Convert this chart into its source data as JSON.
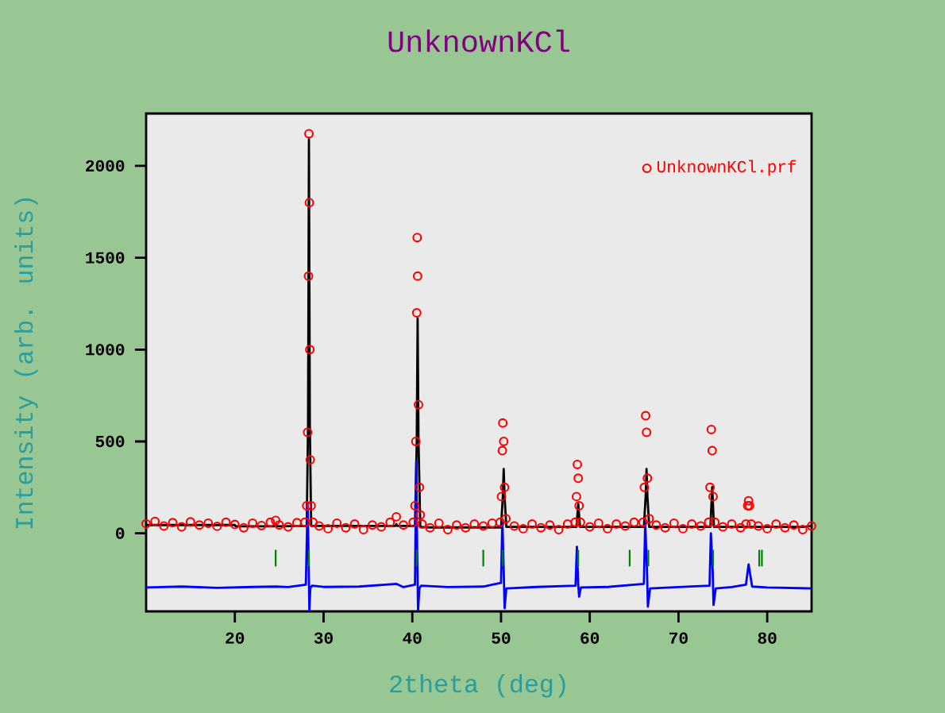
{
  "chart_data": {
    "type": "scatter",
    "title": "UnknownKCl",
    "xlabel": "2theta (deg)",
    "ylabel": "Intensity (arb. units)",
    "xlim": [
      10,
      85
    ],
    "ylim": [
      -425,
      2285
    ],
    "xticks": [
      20,
      30,
      40,
      50,
      60,
      70,
      80
    ],
    "yticks": [
      0,
      500,
      1000,
      1500,
      2000
    ],
    "grid": false,
    "legend": "top right",
    "series": [
      {
        "name": "UnknownKCl.prf",
        "marker": "circle",
        "color": "#ff0000",
        "x": [
          10,
          11,
          12,
          13,
          14,
          15,
          16,
          17,
          18,
          19,
          20,
          21,
          22,
          23,
          24,
          24.6,
          25,
          26,
          27,
          27.9,
          28.1,
          28.2,
          28.3,
          28.35,
          28.4,
          28.45,
          28.5,
          28.6,
          28.8,
          29.5,
          30.5,
          31.5,
          32.5,
          33.5,
          34.5,
          35.5,
          36.5,
          37.5,
          38.2,
          39,
          40.1,
          40.3,
          40.4,
          40.5,
          40.55,
          40.6,
          40.7,
          40.8,
          40.9,
          41.1,
          42,
          43,
          44,
          45,
          46,
          47,
          48,
          49,
          49.9,
          50.05,
          50.15,
          50.2,
          50.3,
          50.4,
          50.55,
          51.5,
          52.5,
          53.5,
          54.5,
          55.5,
          56.5,
          57.5,
          58.35,
          58.5,
          58.6,
          58.7,
          58.8,
          58.95,
          60,
          61,
          62,
          63,
          64,
          65,
          66,
          66.15,
          66.3,
          66.4,
          66.5,
          66.7,
          67.5,
          68.5,
          69.5,
          70.5,
          71.5,
          72.5,
          73.4,
          73.55,
          73.7,
          73.8,
          73.9,
          74.1,
          75,
          76,
          77,
          77.6,
          77.8,
          77.9,
          78,
          78.2,
          79,
          80,
          81,
          82,
          83,
          84,
          85
        ],
        "values": [
          52,
          65,
          40,
          58,
          35,
          62,
          45,
          55,
          38,
          60,
          48,
          30,
          55,
          42,
          60,
          70,
          45,
          35,
          58,
          60,
          150,
          550,
          1400,
          2175,
          1800,
          1000,
          400,
          150,
          60,
          40,
          25,
          55,
          30,
          50,
          20,
          45,
          35,
          60,
          90,
          45,
          60,
          150,
          500,
          1200,
          1610,
          1400,
          700,
          250,
          100,
          50,
          30,
          55,
          20,
          45,
          30,
          50,
          40,
          55,
          60,
          200,
          450,
          600,
          500,
          250,
          80,
          40,
          25,
          50,
          30,
          45,
          20,
          50,
          60,
          200,
          375,
          300,
          150,
          60,
          35,
          55,
          25,
          50,
          40,
          60,
          60,
          250,
          640,
          550,
          300,
          80,
          45,
          30,
          55,
          25,
          50,
          40,
          60,
          250,
          565,
          450,
          200,
          60,
          35,
          50,
          30,
          50,
          150,
          177,
          150,
          50,
          40,
          25,
          50,
          30,
          45,
          20,
          40
        ]
      },
      {
        "type": "line",
        "marker": "none",
        "color": "#000000",
        "x": [
          10,
          20,
          20.1,
          24.4,
          24.6,
          24.8,
          28.1,
          28.25,
          28.35,
          28.45,
          28.6,
          38.1,
          38.2,
          38.3,
          40.3,
          40.5,
          40.6,
          40.7,
          40.9,
          42,
          50,
          50.2,
          50.3,
          50.4,
          50.6,
          58.5,
          58.7,
          58.9,
          66.1,
          66.3,
          66.4,
          66.5,
          66.7,
          73.6,
          73.8,
          74,
          84,
          85
        ],
        "values": [
          45,
          45,
          38,
          38,
          50,
          38,
          40,
          600,
          2145,
          600,
          40,
          40,
          50,
          40,
          40,
          500,
          1170,
          500,
          35,
          32,
          32,
          200,
          350,
          200,
          35,
          35,
          160,
          35,
          35,
          200,
          350,
          200,
          35,
          35,
          252,
          35,
          35,
          40
        ]
      },
      {
        "type": "line",
        "marker": "none",
        "color": "#0000ff",
        "x": [
          10,
          14,
          18,
          22,
          24.6,
          26,
          28.0,
          28.2,
          28.3,
          28.4,
          28.5,
          28.7,
          30,
          34,
          38.2,
          39,
          40.3,
          40.45,
          40.55,
          40.65,
          40.8,
          41,
          44,
          48,
          49,
          50.0,
          50.15,
          50.3,
          50.4,
          50.6,
          54,
          58.4,
          58.55,
          58.7,
          58.8,
          59,
          62,
          65,
          66.1,
          66.25,
          66.45,
          66.55,
          66.8,
          70,
          73.5,
          73.65,
          73.85,
          73.95,
          74.2,
          76,
          77.6,
          77.9,
          78.3,
          80,
          85
        ],
        "values": [
          -295,
          -290,
          -297,
          -292,
          -290,
          -293,
          -280,
          164,
          -100,
          -420,
          -300,
          -285,
          -292,
          -290,
          -275,
          -293,
          -280,
          390,
          -100,
          -420,
          -300,
          -285,
          -293,
          -290,
          -280,
          -270,
          73,
          -200,
          -408,
          -300,
          -292,
          -285,
          -73,
          -280,
          -345,
          -295,
          -292,
          -280,
          -275,
          60,
          -200,
          -399,
          -300,
          -293,
          -285,
          0,
          -200,
          -390,
          -300,
          -293,
          -280,
          -170,
          -290,
          -295,
          -300
        ]
      },
      {
        "type": "bar",
        "color": "#008000",
        "x": [
          24.6,
          28.35,
          40.5,
          48.0,
          50.2,
          58.7,
          64.5,
          66.6,
          73.9,
          79.1,
          79.4
        ],
        "base": [
          -180,
          -180,
          -180,
          -180,
          -180,
          -180,
          -180,
          -180,
          -180,
          -180,
          -180
        ],
        "values": [
          90,
          90,
          90,
          90,
          90,
          90,
          90,
          90,
          90,
          90,
          90
        ]
      }
    ]
  }
}
